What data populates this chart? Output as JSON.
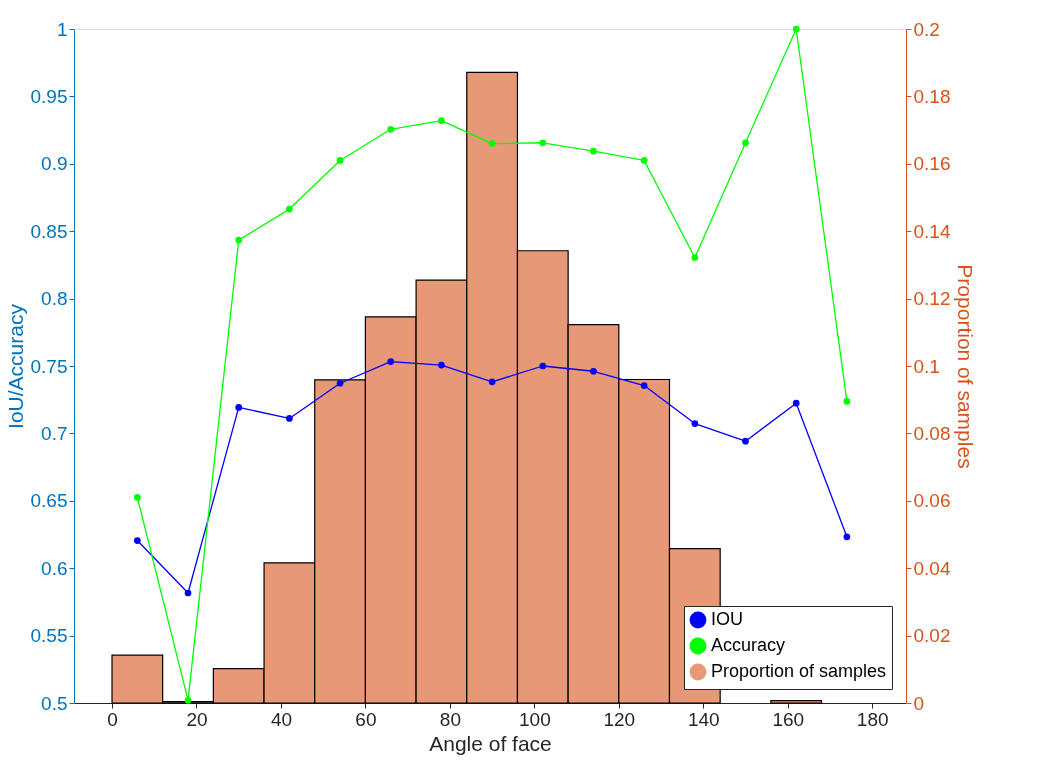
{
  "chart_data": {
    "type": "line",
    "xlabel": "Angle of face",
    "ylabel": "IoU/Accuracy",
    "y2label": "Proportion of samples",
    "x": [
      6,
      18,
      30,
      42,
      54,
      66,
      78,
      90,
      102,
      114,
      126,
      138,
      150,
      162,
      174
    ],
    "xlim": [
      -9,
      188
    ],
    "xticks": [
      0,
      20,
      40,
      60,
      80,
      100,
      120,
      140,
      160,
      180
    ],
    "ylim": [
      0.5,
      1
    ],
    "yticks": [
      0.5,
      0.55,
      0.6,
      0.65,
      0.7,
      0.75,
      0.8,
      0.85,
      0.9,
      0.95,
      1
    ],
    "y2lim": [
      0,
      0.2
    ],
    "y2ticks": [
      0,
      0.02,
      0.04,
      0.06,
      0.08,
      0.1,
      0.12,
      0.14,
      0.16,
      0.18,
      0.2
    ],
    "legend": "bottom right",
    "marker": "circle",
    "line_style": "solid",
    "grid": false,
    "series": [
      {
        "name": "IOU",
        "color": "#0000ff",
        "values": [
          0.6205,
          0.5816,
          0.7193,
          0.7111,
          0.7372,
          0.7533,
          0.7507,
          0.7383,
          0.75,
          0.7461,
          0.7355,
          0.7073,
          0.6942,
          0.7224,
          0.6233
        ]
      },
      {
        "name": "Accuracy",
        "color": "#00ff00",
        "values": [
          0.6525,
          0.502,
          0.8434,
          0.8664,
          0.9025,
          0.9256,
          0.932,
          0.915,
          0.9156,
          0.9094,
          0.9025,
          0.8304,
          0.9156,
          1.0,
          0.7237
        ]
      },
      {
        "name": "Proportion of samples",
        "type": "histogram",
        "axis": "y2",
        "color": "#e79877",
        "bins": [
          0,
          12,
          24,
          36,
          48,
          60,
          72,
          84,
          96,
          108,
          120,
          132,
          144,
          156,
          168,
          180
        ],
        "values": [
          0.0142,
          0.0004,
          0.0102,
          0.0416,
          0.0959,
          0.1146,
          0.1255,
          0.1871,
          0.1342,
          0.1123,
          0.096,
          0.0458,
          null,
          0.0007,
          null
        ]
      }
    ]
  }
}
